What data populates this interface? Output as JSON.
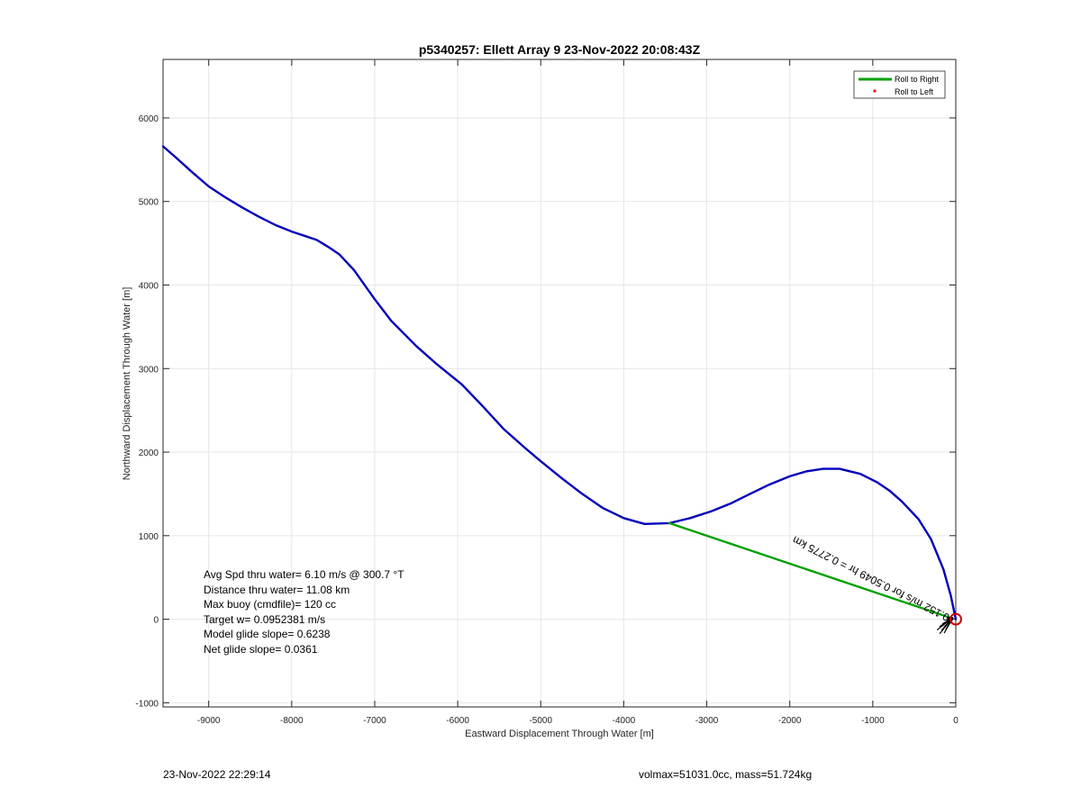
{
  "chart_data": {
    "type": "line",
    "title": "p5340257: Ellett Array 9 23-Nov-2022 20:08:43Z",
    "xlabel": "Eastward Displacement Through Water [m]",
    "ylabel": "Northward Displacement Through Water [m]",
    "xlim": [
      -9550,
      0
    ],
    "ylim": [
      -1050,
      6700
    ],
    "xticks": [
      -9000,
      -8000,
      -7000,
      -6000,
      -5000,
      -4000,
      -3000,
      -2000,
      -1000,
      0
    ],
    "yticks": [
      -1000,
      0,
      1000,
      2000,
      3000,
      4000,
      5000,
      6000
    ],
    "grid": true,
    "legend_position": "top-right",
    "legend": [
      {
        "label": "Roll to Right",
        "color": "#00a000",
        "marker": "line"
      },
      {
        "label": "Roll to Left",
        "color": "#ff0000",
        "marker": "dot"
      }
    ],
    "series": [
      {
        "color": "#0000bb",
        "points": [
          [
            -9550,
            5660
          ],
          [
            -9400,
            5530
          ],
          [
            -9200,
            5350
          ],
          [
            -9000,
            5180
          ],
          [
            -8800,
            5050
          ],
          [
            -8600,
            4930
          ],
          [
            -8400,
            4820
          ],
          [
            -8200,
            4720
          ],
          [
            -8000,
            4640
          ],
          [
            -7700,
            4540
          ],
          [
            -7550,
            4450
          ],
          [
            -7430,
            4370
          ],
          [
            -7250,
            4180
          ],
          [
            -7000,
            3830
          ],
          [
            -6800,
            3570
          ],
          [
            -6500,
            3270
          ],
          [
            -6250,
            3050
          ],
          [
            -5950,
            2810
          ],
          [
            -5700,
            2550
          ],
          [
            -5450,
            2280
          ],
          [
            -5200,
            2060
          ],
          [
            -5000,
            1890
          ],
          [
            -4750,
            1690
          ],
          [
            -4500,
            1500
          ],
          [
            -4250,
            1330
          ],
          [
            -4000,
            1210
          ],
          [
            -3750,
            1140
          ],
          [
            -3450,
            1150
          ],
          [
            -3200,
            1210
          ],
          [
            -2950,
            1290
          ],
          [
            -2700,
            1390
          ],
          [
            -2500,
            1490
          ],
          [
            -2250,
            1610
          ],
          [
            -2000,
            1710
          ],
          [
            -1800,
            1770
          ],
          [
            -1600,
            1800
          ],
          [
            -1400,
            1800
          ],
          [
            -1150,
            1740
          ],
          [
            -950,
            1640
          ],
          [
            -800,
            1540
          ],
          [
            -650,
            1410
          ],
          [
            -450,
            1200
          ],
          [
            -300,
            960
          ],
          [
            -150,
            600
          ],
          [
            -60,
            280
          ],
          [
            0,
            0
          ]
        ]
      },
      {
        "name": "Roll to Right",
        "color": "#00a000",
        "points": [
          [
            -3450,
            1150
          ],
          [
            -40,
            10
          ]
        ]
      }
    ],
    "markers": [
      {
        "type": "circle",
        "x": 0,
        "y": 0,
        "color": "#cc0000"
      }
    ],
    "annotations": {
      "stats": [
        "Avg Spd thru water=  6.10 m/s @ 300.7 °T",
        "Distance thru water= 11.08 km",
        "Max buoy (cmdfile)= 120 cc",
        "Target w= 0.0952381 m/s",
        "Model glide slope= 0.6238",
        "Net glide slope= 0.0361"
      ],
      "vector_label": "0.152 m/s for 0.5049 hr = 0.2775 km"
    }
  },
  "footer": {
    "left": "23-Nov-2022 22:29:14",
    "right": "volmax=51031.0cc, mass=51.724kg"
  }
}
